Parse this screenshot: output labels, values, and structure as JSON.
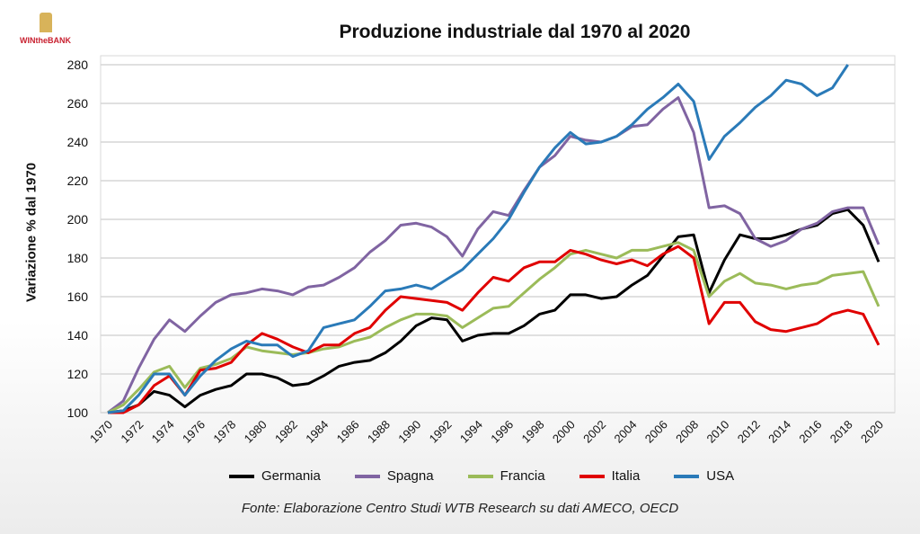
{
  "logo_text": "WINtheBANK",
  "chart_data": {
    "type": "line",
    "title": "Produzione industriale dal 1970 al 2020",
    "xlabel": "",
    "ylabel": "Variazione % dal 1970",
    "ylim": [
      100,
      280
    ],
    "yticks": [
      100,
      120,
      140,
      160,
      180,
      200,
      220,
      240,
      260,
      280
    ],
    "xlim": [
      1970,
      2020
    ],
    "xticks": [
      1970,
      1972,
      1974,
      1976,
      1978,
      1980,
      1982,
      1984,
      1986,
      1988,
      1990,
      1992,
      1994,
      1996,
      1998,
      2000,
      2002,
      2004,
      2006,
      2008,
      2010,
      2012,
      2014,
      2016,
      2018,
      2020
    ],
    "grid": true,
    "legend_position": "bottom",
    "x_start": 1970,
    "series": [
      {
        "name": "Germania",
        "color": "#000000",
        "values": [
          100,
          101,
          104,
          111,
          109,
          103,
          109,
          112,
          114,
          120,
          120,
          118,
          114,
          115,
          119,
          124,
          126,
          127,
          131,
          137,
          145,
          149,
          148,
          137,
          140,
          141,
          141,
          145,
          151,
          153,
          161,
          161,
          159,
          160,
          166,
          171,
          181,
          191,
          192,
          162,
          179,
          192,
          190,
          190,
          192,
          195,
          197,
          203,
          205,
          197,
          178
        ]
      },
      {
        "name": "Spagna",
        "color": "#8064a2",
        "values": [
          100,
          106,
          123,
          138,
          148,
          142,
          150,
          157,
          161,
          162,
          164,
          163,
          161,
          165,
          166,
          170,
          175,
          183,
          189,
          197,
          198,
          196,
          191,
          181,
          195,
          204,
          202,
          215,
          227,
          233,
          243,
          241,
          240,
          243,
          248,
          249,
          257,
          263,
          245,
          206,
          207,
          203,
          190,
          186,
          189,
          195,
          198,
          204,
          206,
          206,
          187
        ]
      },
      {
        "name": "Francia",
        "color": "#9bbb59",
        "values": [
          100,
          104,
          112,
          121,
          124,
          113,
          123,
          125,
          128,
          134,
          132,
          131,
          130,
          131,
          133,
          134,
          137,
          139,
          144,
          148,
          151,
          151,
          150,
          144,
          149,
          154,
          155,
          162,
          169,
          175,
          182,
          184,
          182,
          180,
          184,
          184,
          186,
          188,
          184,
          160,
          168,
          172,
          167,
          166,
          164,
          166,
          167,
          171,
          172,
          173,
          155
        ]
      },
      {
        "name": "Italia",
        "color": "#e00000",
        "values": [
          100,
          100,
          104,
          114,
          119,
          109,
          122,
          123,
          126,
          135,
          141,
          138,
          134,
          131,
          135,
          135,
          141,
          144,
          153,
          160,
          159,
          158,
          157,
          153,
          162,
          170,
          168,
          175,
          178,
          178,
          184,
          182,
          179,
          177,
          179,
          176,
          182,
          186,
          180,
          146,
          157,
          157,
          147,
          143,
          142,
          144,
          146,
          151,
          153,
          151,
          135
        ]
      },
      {
        "name": "USA",
        "color": "#2a7ab8",
        "values": [
          100,
          101,
          109,
          120,
          120,
          109,
          119,
          127,
          133,
          137,
          135,
          135,
          129,
          132,
          144,
          146,
          148,
          155,
          163,
          164,
          166,
          164,
          169,
          174,
          182,
          190,
          200,
          214,
          227,
          237,
          245,
          239,
          240,
          243,
          249,
          257,
          263,
          270,
          261,
          231,
          243,
          250,
          258,
          264,
          272,
          270,
          264,
          268,
          280
        ]
      }
    ],
    "source": "Fonte: Elaborazione Centro Studi WTB Research su dati AMECO, OECD"
  }
}
